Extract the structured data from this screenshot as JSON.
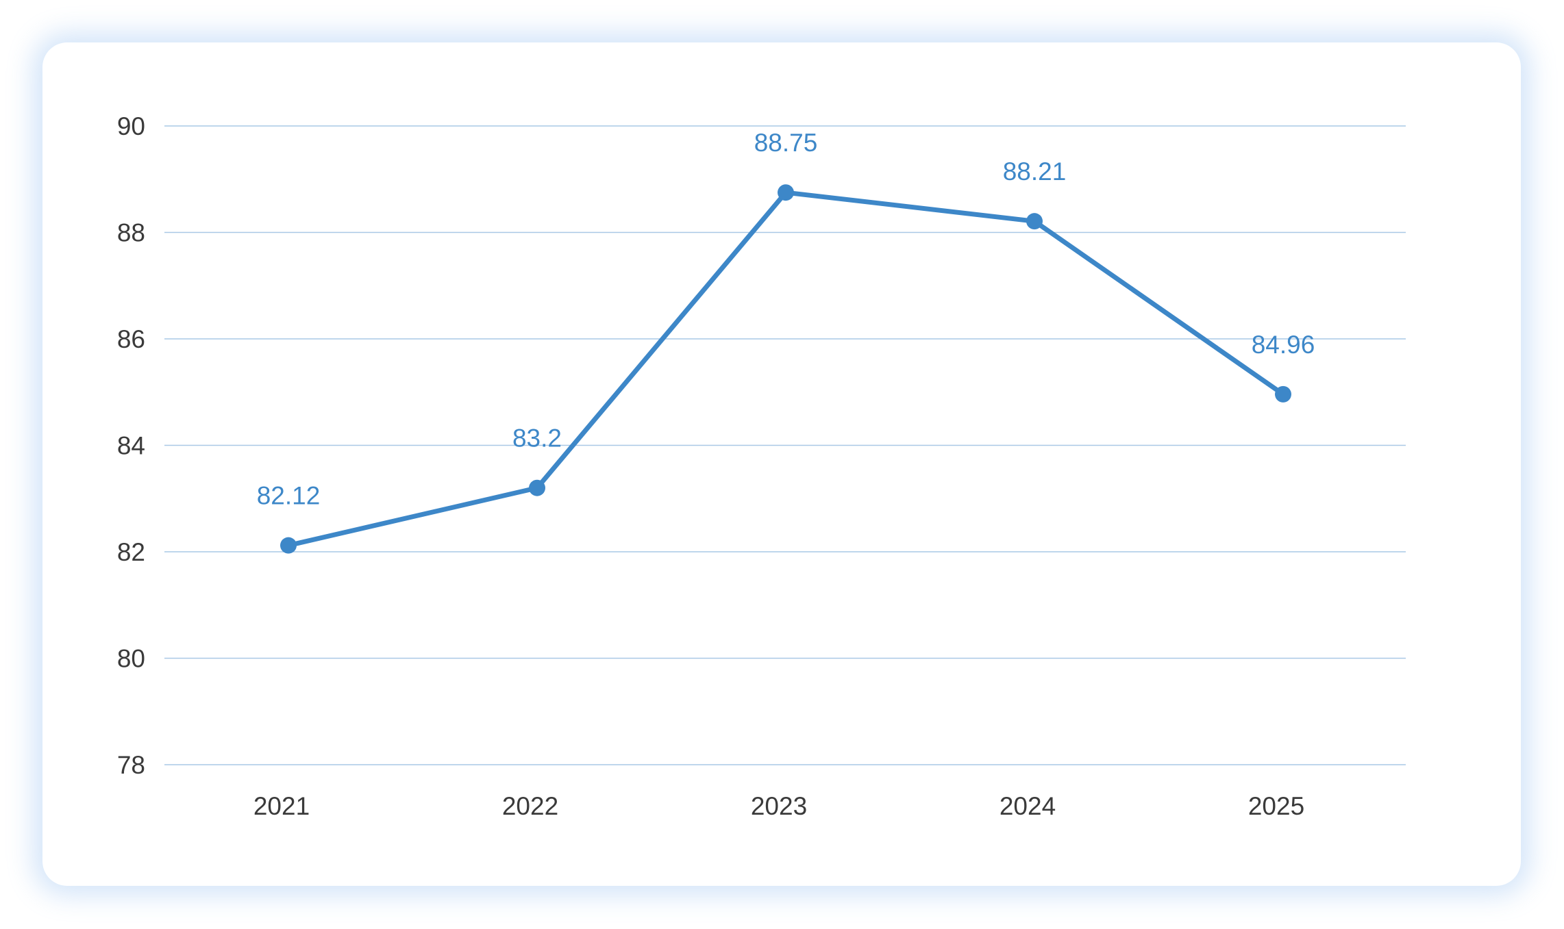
{
  "chart_data": {
    "type": "line",
    "categories": [
      "2021",
      "2022",
      "2023",
      "2024",
      "2025"
    ],
    "series": [
      {
        "values": [
          82.12,
          83.2,
          88.75,
          88.21,
          84.96
        ]
      }
    ],
    "data_labels": [
      "82.12",
      "83.2",
      "88.75",
      "88.21",
      "84.96"
    ],
    "y_ticks": [
      "78",
      "80",
      "82",
      "84",
      "86",
      "88",
      "90"
    ],
    "ylim": [
      78,
      90
    ],
    "grid": true,
    "legend": "none",
    "colors": {
      "line": "#3d87c8",
      "grid": "#a9c8e6",
      "label": "#3d87c8",
      "axis_text": "#3a3a3a"
    }
  }
}
